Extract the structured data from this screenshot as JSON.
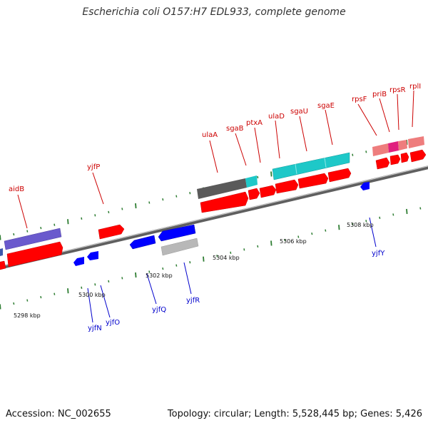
{
  "title": "Escherichia coli O157:H7 EDL933, complete genome",
  "footer": {
    "accession": "Accession: NC_002655",
    "summary": "Topology: circular; Length: 5,528,445 bp; Genes: 5,426"
  },
  "ruler": [
    {
      "label": "5298 kbp"
    },
    {
      "label": "5300 kbp"
    },
    {
      "label": "5302 kbp"
    },
    {
      "label": "5304 kbp"
    },
    {
      "label": "5306 kbp"
    },
    {
      "label": "5308 kbp"
    }
  ],
  "genes_forward": [
    {
      "name": "aidB"
    },
    {
      "name": "yjfP"
    },
    {
      "name": "ulaA"
    },
    {
      "name": "sgaB"
    },
    {
      "name": "ptxA"
    },
    {
      "name": "ulaD"
    },
    {
      "name": "sgaU"
    },
    {
      "name": "sgaE"
    },
    {
      "name": "rpsF"
    },
    {
      "name": "priB"
    },
    {
      "name": "rpsR"
    },
    {
      "name": "rplI"
    }
  ],
  "genes_reverse": [
    {
      "name": "yjfN"
    },
    {
      "name": "yjfO"
    },
    {
      "name": "yjfQ"
    },
    {
      "name": "yjfR"
    },
    {
      "name": "yjfY"
    }
  ],
  "colors": {
    "forward_label": "#cc0000",
    "reverse_label": "#0000cc",
    "cds_forward": "#ff0000",
    "cds_reverse": "#0000ff",
    "backbone": "#808080",
    "tick": "#2e7d32",
    "ulaA_family": "#5a5a5a",
    "sga_family": "#1ec8c8",
    "aidB_family": "#6a5acd",
    "ribosomal": "#ee7d7d",
    "priB": "#e0207e",
    "yjfR_family": "#b8b8b8"
  }
}
